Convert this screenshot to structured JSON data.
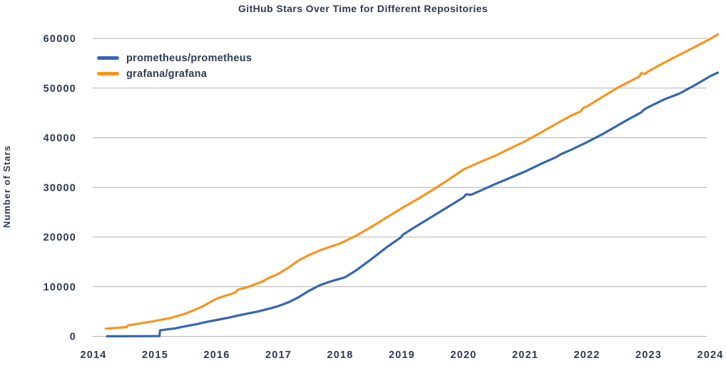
{
  "chart_data": {
    "type": "line",
    "title": "GitHub Stars Over Time for Different Repositories",
    "xlabel": "",
    "ylabel": "Number of Stars",
    "x_ticks": [
      2014,
      2015,
      2016,
      2017,
      2018,
      2019,
      2020,
      2021,
      2022,
      2023,
      2024
    ],
    "y_ticks": [
      0,
      10000,
      20000,
      30000,
      40000,
      50000,
      60000
    ],
    "xlim": [
      2014,
      2024.15
    ],
    "ylim": [
      0,
      62000
    ],
    "grid": "horizontal",
    "legend_position": "top-left-inside",
    "colors": {
      "prometheus": "#3765af",
      "grafana": "#f7941f",
      "text": "#2d3c52",
      "gridline": "#b2b2b2",
      "background": "#ffffff"
    },
    "series": [
      {
        "name": "prometheus/prometheus",
        "color": "#3765af",
        "points": [
          [
            2014.22,
            10
          ],
          [
            2014.5,
            20
          ],
          [
            2014.75,
            30
          ],
          [
            2015.0,
            40
          ],
          [
            2015.07,
            45
          ],
          [
            2015.08,
            1200
          ],
          [
            2015.17,
            1350
          ],
          [
            2015.33,
            1600
          ],
          [
            2015.5,
            2050
          ],
          [
            2015.67,
            2450
          ],
          [
            2015.83,
            2900
          ],
          [
            2016.0,
            3300
          ],
          [
            2016.17,
            3700
          ],
          [
            2016.33,
            4150
          ],
          [
            2016.5,
            4600
          ],
          [
            2016.67,
            5000
          ],
          [
            2016.83,
            5500
          ],
          [
            2017.0,
            6100
          ],
          [
            2017.17,
            6900
          ],
          [
            2017.33,
            7900
          ],
          [
            2017.5,
            9200
          ],
          [
            2017.67,
            10300
          ],
          [
            2017.83,
            11000
          ],
          [
            2018.0,
            11600
          ],
          [
            2018.08,
            11900
          ],
          [
            2018.25,
            13200
          ],
          [
            2018.5,
            15500
          ],
          [
            2018.75,
            17900
          ],
          [
            2018.98,
            19900
          ],
          [
            2019.02,
            20500
          ],
          [
            2019.25,
            22300
          ],
          [
            2019.5,
            24200
          ],
          [
            2019.75,
            26100
          ],
          [
            2020.0,
            28000
          ],
          [
            2020.04,
            28600
          ],
          [
            2020.12,
            28500
          ],
          [
            2020.25,
            29200
          ],
          [
            2020.5,
            30600
          ],
          [
            2020.75,
            31900
          ],
          [
            2021.0,
            33200
          ],
          [
            2021.25,
            34700
          ],
          [
            2021.5,
            36100
          ],
          [
            2021.58,
            36700
          ],
          [
            2021.75,
            37600
          ],
          [
            2022.0,
            39100
          ],
          [
            2022.25,
            40700
          ],
          [
            2022.5,
            42500
          ],
          [
            2022.67,
            43700
          ],
          [
            2022.88,
            45100
          ],
          [
            2022.92,
            45600
          ],
          [
            2023.0,
            46200
          ],
          [
            2023.25,
            47700
          ],
          [
            2023.5,
            48900
          ],
          [
            2023.75,
            50600
          ],
          [
            2024.0,
            52400
          ],
          [
            2024.12,
            53100
          ]
        ]
      },
      {
        "name": "grafana/grafana",
        "color": "#f7941f",
        "points": [
          [
            2014.2,
            1550
          ],
          [
            2014.33,
            1650
          ],
          [
            2014.5,
            1800
          ],
          [
            2014.54,
            1850
          ],
          [
            2014.56,
            2200
          ],
          [
            2014.75,
            2600
          ],
          [
            2015.0,
            3100
          ],
          [
            2015.25,
            3700
          ],
          [
            2015.5,
            4600
          ],
          [
            2015.75,
            5900
          ],
          [
            2016.0,
            7600
          ],
          [
            2016.17,
            8300
          ],
          [
            2016.3,
            8800
          ],
          [
            2016.34,
            9400
          ],
          [
            2016.5,
            9900
          ],
          [
            2016.75,
            11100
          ],
          [
            2016.8,
            11500
          ],
          [
            2017.0,
            12600
          ],
          [
            2017.17,
            13900
          ],
          [
            2017.33,
            15300
          ],
          [
            2017.5,
            16400
          ],
          [
            2017.67,
            17300
          ],
          [
            2017.83,
            18000
          ],
          [
            2018.0,
            18700
          ],
          [
            2018.25,
            20200
          ],
          [
            2018.5,
            22000
          ],
          [
            2018.75,
            23900
          ],
          [
            2019.0,
            25800
          ],
          [
            2019.25,
            27600
          ],
          [
            2019.5,
            29500
          ],
          [
            2019.75,
            31500
          ],
          [
            2020.0,
            33600
          ],
          [
            2020.25,
            35000
          ],
          [
            2020.5,
            36300
          ],
          [
            2020.75,
            37800
          ],
          [
            2021.0,
            39300
          ],
          [
            2021.25,
            41000
          ],
          [
            2021.5,
            42800
          ],
          [
            2021.75,
            44500
          ],
          [
            2021.9,
            45300
          ],
          [
            2021.94,
            46000
          ],
          [
            2022.0,
            46300
          ],
          [
            2022.25,
            48200
          ],
          [
            2022.5,
            50100
          ],
          [
            2022.75,
            51700
          ],
          [
            2022.85,
            52300
          ],
          [
            2022.88,
            53000
          ],
          [
            2022.95,
            52900
          ],
          [
            2023.0,
            53400
          ],
          [
            2023.25,
            55100
          ],
          [
            2023.5,
            56700
          ],
          [
            2023.75,
            58300
          ],
          [
            2024.0,
            59900
          ],
          [
            2024.12,
            60800
          ]
        ]
      }
    ]
  }
}
